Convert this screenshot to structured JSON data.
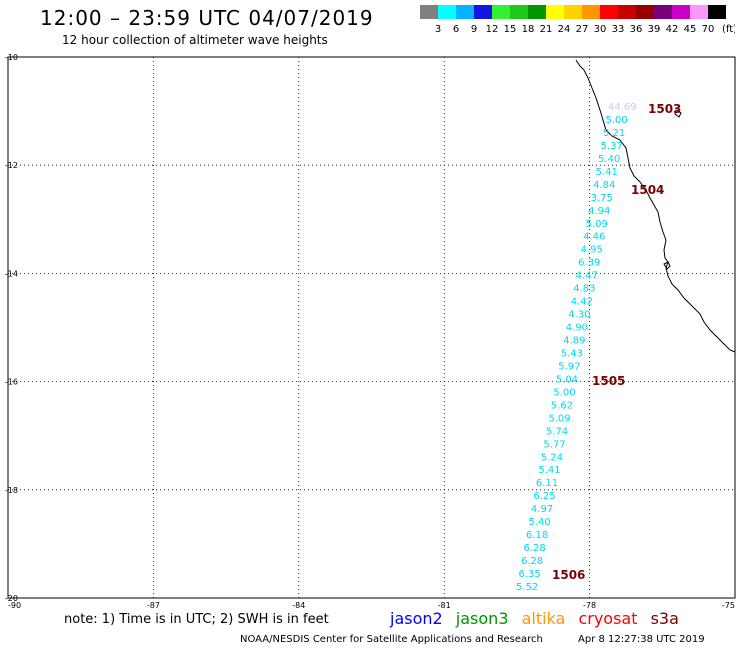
{
  "header": {
    "title": "12:00 – 23:59 UTC 04/07/2019",
    "subtitle": "12 hour collection of altimeter wave heights"
  },
  "colorbar": {
    "bins": [
      {
        "label": "3",
        "color": "#7f7f7f"
      },
      {
        "label": "6",
        "color": "#00ffff"
      },
      {
        "label": "9",
        "color": "#00b4ff"
      },
      {
        "label": "12",
        "color": "#1414e6"
      },
      {
        "label": "15",
        "color": "#32f032"
      },
      {
        "label": "18",
        "color": "#1ec81e"
      },
      {
        "label": "21",
        "color": "#009600"
      },
      {
        "label": "24",
        "color": "#ffff00"
      },
      {
        "label": "27",
        "color": "#ffd200"
      },
      {
        "label": "30",
        "color": "#ff9600"
      },
      {
        "label": "33",
        "color": "#ff0000"
      },
      {
        "label": "36",
        "color": "#c80000"
      },
      {
        "label": "39",
        "color": "#960000"
      },
      {
        "label": "42",
        "color": "#780078"
      },
      {
        "label": "45",
        "color": "#c800c8"
      },
      {
        "label": "70",
        "color": "#ff96ff"
      },
      {
        "label": "",
        "color": "#000000"
      }
    ],
    "unit": "(ft)"
  },
  "axes": {
    "lon_labels": [
      "-90",
      "-87",
      "-84",
      "-81",
      "-78",
      "-75"
    ],
    "lat_labels": [
      "-10",
      "-12",
      "-14",
      "-16",
      "-18",
      "-20"
    ]
  },
  "track": {
    "color": "#00d8f0",
    "values": [
      "44.69",
      "5.00",
      "5.21",
      "5.37",
      "5.40",
      "5.41",
      "4.84",
      "3.75",
      "4.94",
      "5.09",
      "4.46",
      "4.95",
      "6.39",
      "4.47",
      "4.83",
      "4.42",
      "4.30",
      "4.90",
      "4.89",
      "5.43",
      "5.97",
      "5.04",
      "5.00",
      "5.62",
      "5.09",
      "5.74",
      "5.77",
      "5.24",
      "5.41",
      "6.11",
      "6.25",
      "4.97",
      "5.40",
      "6.18",
      "6.28",
      "6.28",
      "6.35",
      "5.52"
    ],
    "first_value_color": "#c8c8f0"
  },
  "time_labels": [
    {
      "text": "1503",
      "lon": -77.6,
      "lat": -10.9
    },
    {
      "text": "1504",
      "lon": -77.8,
      "lat": -12.55
    },
    {
      "text": "1505",
      "lon": -78.1,
      "lat": -16.05
    },
    {
      "text": "1506",
      "lon": -78.7,
      "lat": -19.65
    }
  ],
  "time_label_color": "#780000",
  "footer": {
    "note": "note:  1) Time is in UTC;  2) SWH is in feet",
    "satellites": [
      {
        "name": "jason2",
        "color": "#0000ff"
      },
      {
        "name": "jason3",
        "color": "#009600"
      },
      {
        "name": "altika",
        "color": "#ff9600"
      },
      {
        "name": "cryosat",
        "color": "#ff0000"
      },
      {
        "name": "s3a",
        "color": "#780000"
      }
    ],
    "credit": "NOAA/NESDIS Center for Satellite Applications and Research",
    "timestamp": "Apr  8 12:27:38 UTC 2019"
  }
}
